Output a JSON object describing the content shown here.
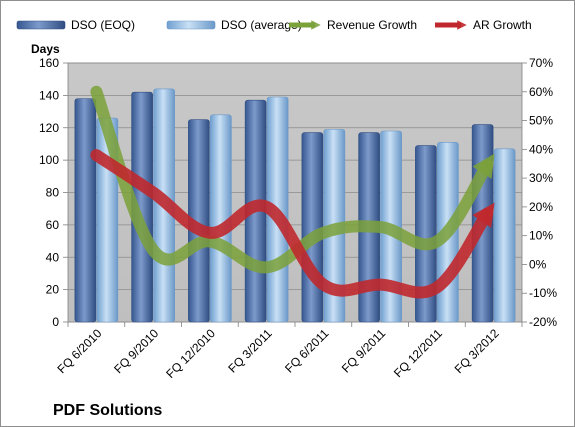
{
  "chart_data": {
    "type": "bar",
    "title": "PDF Solutions",
    "ylabel": "Days",
    "categories": [
      "FQ 6/2010",
      "FQ 9/2010",
      "FQ 12/2010",
      "FQ 3/2011",
      "FQ 6/2011",
      "FQ 9/2011",
      "FQ 12/2011",
      "FQ 3/2012"
    ],
    "y_ticks": [
      "0",
      "20",
      "40",
      "60",
      "80",
      "100",
      "120",
      "140",
      "160"
    ],
    "y2_ticks": [
      "-20%",
      "-10%",
      "0%",
      "10%",
      "20%",
      "30%",
      "40%",
      "50%",
      "60%",
      "70%"
    ],
    "ylim": [
      0,
      160
    ],
    "y2lim": [
      -20,
      70
    ],
    "grid": true,
    "legend_position": "top",
    "bar_series": [
      {
        "name": "DSO (EOQ)",
        "values": [
          138,
          142,
          125,
          137,
          117,
          117,
          109,
          122
        ],
        "color": "#4f6fa8"
      },
      {
        "name": "DSO (average)",
        "values": [
          126,
          144,
          128,
          139,
          119,
          118,
          111,
          107
        ],
        "color": "#9dc3e6"
      }
    ],
    "line_series": [
      {
        "name": "Revenue Growth",
        "axis": "secondary",
        "unit": "%",
        "values": [
          60,
          5,
          8,
          -1,
          11,
          13,
          8,
          38
        ],
        "color": "#7ba13a"
      },
      {
        "name": "AR Growth",
        "axis": "secondary",
        "unit": "%",
        "values": [
          38,
          25,
          11,
          20,
          -7,
          -7,
          -8,
          21
        ],
        "color": "#c0282d"
      }
    ]
  }
}
